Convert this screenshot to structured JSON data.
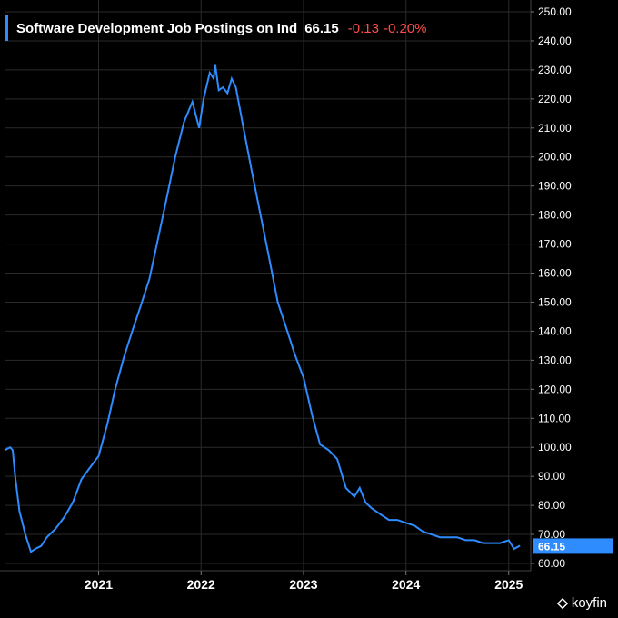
{
  "legend": {
    "title": "Software Development Job Postings on Ind",
    "value": "66.15",
    "change": "-0.13",
    "change_pct": "-0.20%"
  },
  "brand": {
    "name": "koyfin"
  },
  "colors": {
    "line": "#2f8cff",
    "badge": "#2f8cff",
    "negative": "#ff4e4e",
    "background": "#000000",
    "grid": "#2a2a2a"
  },
  "chart_data": {
    "type": "line",
    "title": "Software Development Job Postings on Ind",
    "xlabel": "",
    "ylabel": "",
    "x_ticks": [
      "2021",
      "2022",
      "2023",
      "2024",
      "2025"
    ],
    "y_ticks": [
      "60.00",
      "70.00",
      "80.00",
      "90.00",
      "100.00",
      "110.00",
      "120.00",
      "130.00",
      "140.00",
      "150.00",
      "160.00",
      "170.00",
      "180.00",
      "190.00",
      "200.00",
      "210.00",
      "220.00",
      "230.00",
      "240.00",
      "250.00"
    ],
    "ylim": [
      60,
      250
    ],
    "xlim": [
      "2020-02-01",
      "2025-03-01"
    ],
    "grid": true,
    "last_value_label": "66.15",
    "series": [
      {
        "values": [
          {
            "x": "2020-02-01",
            "y": 99
          },
          {
            "x": "2020-02-21",
            "y": 100
          },
          {
            "x": "2020-03-01",
            "y": 99
          },
          {
            "x": "2020-03-10",
            "y": 90
          },
          {
            "x": "2020-03-25",
            "y": 78
          },
          {
            "x": "2020-04-15",
            "y": 70
          },
          {
            "x": "2020-05-05",
            "y": 64
          },
          {
            "x": "2020-05-20",
            "y": 65
          },
          {
            "x": "2020-06-10",
            "y": 66
          },
          {
            "x": "2020-07-01",
            "y": 69
          },
          {
            "x": "2020-08-01",
            "y": 72
          },
          {
            "x": "2020-09-01",
            "y": 76
          },
          {
            "x": "2020-10-01",
            "y": 81
          },
          {
            "x": "2020-11-01",
            "y": 89
          },
          {
            "x": "2020-12-01",
            "y": 93
          },
          {
            "x": "2021-01-01",
            "y": 97
          },
          {
            "x": "2021-02-01",
            "y": 108
          },
          {
            "x": "2021-03-01",
            "y": 120
          },
          {
            "x": "2021-04-01",
            "y": 131
          },
          {
            "x": "2021-05-01",
            "y": 140
          },
          {
            "x": "2021-06-01",
            "y": 149
          },
          {
            "x": "2021-07-01",
            "y": 158
          },
          {
            "x": "2021-08-01",
            "y": 172
          },
          {
            "x": "2021-09-01",
            "y": 186
          },
          {
            "x": "2021-10-01",
            "y": 200
          },
          {
            "x": "2021-11-01",
            "y": 212
          },
          {
            "x": "2021-12-01",
            "y": 219
          },
          {
            "x": "2021-12-25",
            "y": 210
          },
          {
            "x": "2022-01-10",
            "y": 220
          },
          {
            "x": "2022-02-01",
            "y": 229
          },
          {
            "x": "2022-02-15",
            "y": 227
          },
          {
            "x": "2022-02-20",
            "y": 232
          },
          {
            "x": "2022-03-05",
            "y": 223
          },
          {
            "x": "2022-03-20",
            "y": 224
          },
          {
            "x": "2022-04-05",
            "y": 222
          },
          {
            "x": "2022-04-20",
            "y": 227
          },
          {
            "x": "2022-05-05",
            "y": 224
          },
          {
            "x": "2022-06-01",
            "y": 210
          },
          {
            "x": "2022-07-01",
            "y": 195
          },
          {
            "x": "2022-08-01",
            "y": 180
          },
          {
            "x": "2022-09-01",
            "y": 165
          },
          {
            "x": "2022-10-01",
            "y": 150
          },
          {
            "x": "2022-11-01",
            "y": 141
          },
          {
            "x": "2022-12-01",
            "y": 132
          },
          {
            "x": "2023-01-01",
            "y": 124
          },
          {
            "x": "2023-02-01",
            "y": 111
          },
          {
            "x": "2023-03-01",
            "y": 101
          },
          {
            "x": "2023-04-01",
            "y": 99
          },
          {
            "x": "2023-05-01",
            "y": 96
          },
          {
            "x": "2023-06-01",
            "y": 86
          },
          {
            "x": "2023-07-01",
            "y": 83
          },
          {
            "x": "2023-07-20",
            "y": 86
          },
          {
            "x": "2023-08-10",
            "y": 81
          },
          {
            "x": "2023-09-01",
            "y": 79
          },
          {
            "x": "2023-10-01",
            "y": 77
          },
          {
            "x": "2023-11-01",
            "y": 75
          },
          {
            "x": "2023-12-01",
            "y": 75
          },
          {
            "x": "2024-01-01",
            "y": 74
          },
          {
            "x": "2024-02-01",
            "y": 73
          },
          {
            "x": "2024-03-01",
            "y": 71
          },
          {
            "x": "2024-04-01",
            "y": 70
          },
          {
            "x": "2024-05-01",
            "y": 69
          },
          {
            "x": "2024-06-01",
            "y": 69
          },
          {
            "x": "2024-07-01",
            "y": 69
          },
          {
            "x": "2024-08-01",
            "y": 68
          },
          {
            "x": "2024-09-01",
            "y": 68
          },
          {
            "x": "2024-10-01",
            "y": 67
          },
          {
            "x": "2024-11-01",
            "y": 67
          },
          {
            "x": "2024-12-01",
            "y": 67
          },
          {
            "x": "2025-01-01",
            "y": 68
          },
          {
            "x": "2025-01-20",
            "y": 65
          },
          {
            "x": "2025-02-10",
            "y": 66.15
          }
        ]
      }
    ]
  }
}
